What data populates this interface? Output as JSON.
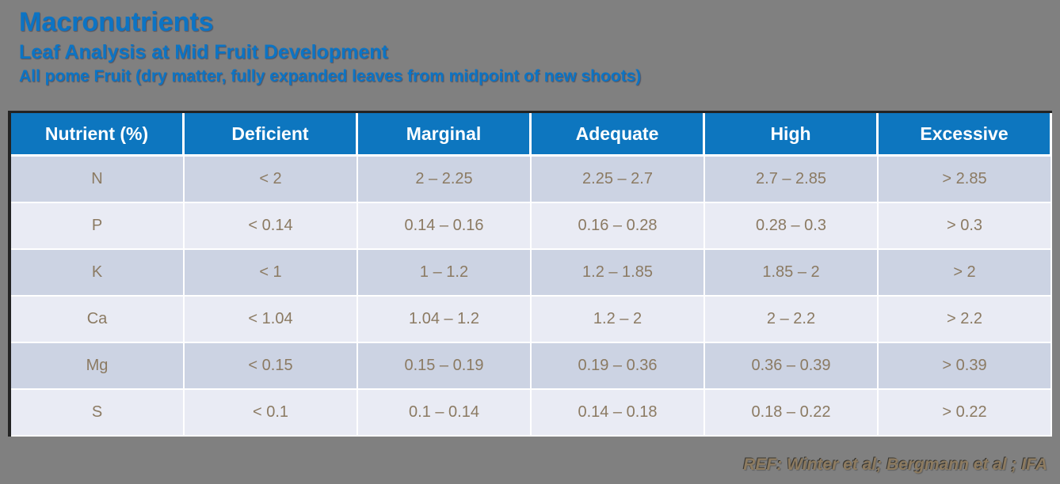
{
  "page": {
    "title": "Macronutrients",
    "subtitle": "Leaf Analysis at Mid Fruit Development",
    "subtitle2": "All pome Fruit (dry matter, fully expanded leaves from midpoint of new shoots)",
    "footer_ref": "REF: Winter et al; Bergmann et al ; IFA"
  },
  "colors": {
    "background": "#808080",
    "title_blue": "#0c74c4",
    "header_bg": "#0d76bf",
    "header_text": "#ffffff",
    "row_odd_bg": "#ccd3e3",
    "row_even_bg": "#e9ebf4",
    "cell_text": "#8b7a62",
    "grid_line": "#ffffff",
    "table_border_dark": "#232323",
    "footer_text": "#8d7b60"
  },
  "chart_data": {
    "type": "table",
    "title": "Macronutrients — Leaf Analysis at Mid Fruit Development",
    "columns": [
      "Nutrient (%)",
      "Deficient",
      "Marginal",
      "Adequate",
      "High",
      "Excessive"
    ],
    "rows": [
      [
        "N",
        "< 2",
        "2 – 2.25",
        "2.25 – 2.7",
        "2.7 – 2.85",
        "> 2.85"
      ],
      [
        "P",
        "< 0.14",
        "0.14 – 0.16",
        "0.16 – 0.28",
        "0.28 – 0.3",
        "> 0.3"
      ],
      [
        "K",
        "< 1",
        "1 – 1.2",
        "1.2 – 1.85",
        "1.85 – 2",
        "> 2"
      ],
      [
        "Ca",
        "< 1.04",
        "1.04 – 1.2",
        "1.2 – 2",
        "2 – 2.2",
        "> 2.2"
      ],
      [
        "Mg",
        "< 0.15",
        "0.15 – 0.19",
        "0.19 – 0.36",
        "0.36 – 0.39",
        "> 0.39"
      ],
      [
        "S",
        "< 0.1",
        "0.1 – 0.14",
        "0.14 – 0.18",
        "0.18 – 0.22",
        "> 0.22"
      ]
    ]
  }
}
